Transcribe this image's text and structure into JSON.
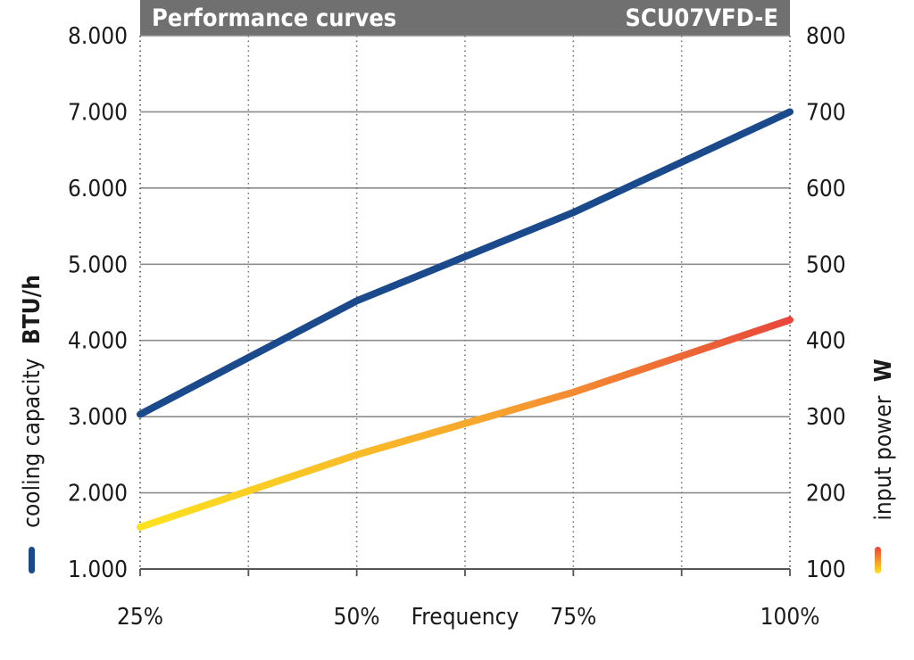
{
  "chart_data": {
    "type": "line",
    "title": "Performance curves",
    "subtitle": "SCU07VFD-E",
    "xlabel": "Frequency",
    "x_ticks": [
      "25%",
      "50%",
      "75%",
      "100%"
    ],
    "x": [
      25,
      50,
      75,
      100
    ],
    "x_range": [
      25,
      100
    ],
    "y_left": {
      "label": "cooling capacity",
      "unit": "BTU/h",
      "range": [
        1000,
        8000
      ],
      "ticks": [
        "1.000",
        "2.000",
        "3.000",
        "4.000",
        "5.000",
        "6.000",
        "7.000",
        "8.000"
      ]
    },
    "y_right": {
      "label": "input power",
      "unit": "W",
      "range": [
        100,
        800
      ],
      "ticks": [
        "100",
        "200",
        "300",
        "400",
        "500",
        "600",
        "700",
        "800"
      ]
    },
    "series": [
      {
        "axis": "left",
        "color": "#1b4a8c",
        "x": [
          25,
          50,
          75,
          100
        ],
        "values": [
          3030,
          4520,
          5680,
          7000
        ]
      },
      {
        "axis": "right",
        "gradient": [
          "#fde21f",
          "#f7a22e",
          "#e8463a"
        ],
        "x": [
          25,
          50,
          75,
          100
        ],
        "values": [
          155,
          250,
          332,
          427
        ]
      }
    ],
    "grid": {
      "horizontal": "solid",
      "vertical": "dotted",
      "vertical_at": [
        25,
        37.5,
        50,
        62.5,
        75,
        87.5,
        100
      ]
    },
    "header_color": "#707070"
  }
}
